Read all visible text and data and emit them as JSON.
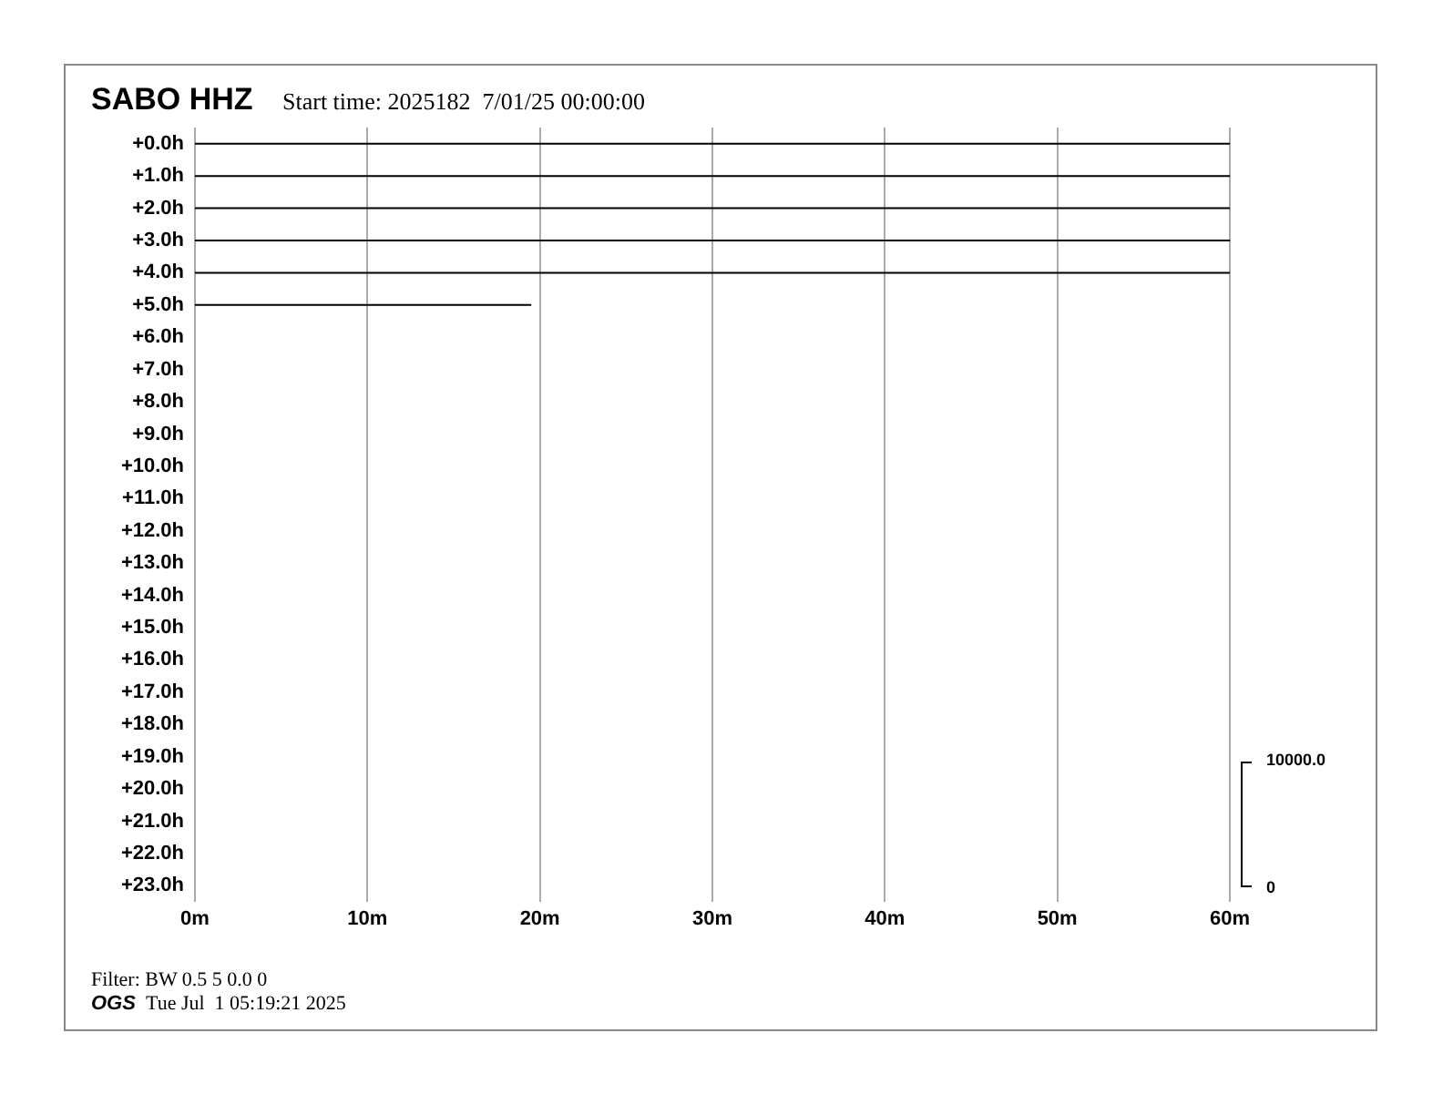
{
  "chart_data": {
    "type": "line",
    "title": "SABO HHZ",
    "subtitle": "Start time: 2025182  7/01/25 00:00:00",
    "xlim": [
      0,
      60
    ],
    "xticks": [
      {
        "value": 0,
        "label": "0m"
      },
      {
        "value": 10,
        "label": "10m"
      },
      {
        "value": 20,
        "label": "20m"
      },
      {
        "value": 30,
        "label": "30m"
      },
      {
        "value": 40,
        "label": "40m"
      },
      {
        "value": 50,
        "label": "50m"
      },
      {
        "value": 60,
        "label": "60m"
      }
    ],
    "ylim": [
      23.5,
      -0.5
    ],
    "yticks": [
      {
        "value": 0,
        "label": "+0.0h"
      },
      {
        "value": 1,
        "label": "+1.0h"
      },
      {
        "value": 2,
        "label": "+2.0h"
      },
      {
        "value": 3,
        "label": "+3.0h"
      },
      {
        "value": 4,
        "label": "+4.0h"
      },
      {
        "value": 5,
        "label": "+5.0h"
      },
      {
        "value": 6,
        "label": "+6.0h"
      },
      {
        "value": 7,
        "label": "+7.0h"
      },
      {
        "value": 8,
        "label": "+8.0h"
      },
      {
        "value": 9,
        "label": "+9.0h"
      },
      {
        "value": 10,
        "label": "+10.0h"
      },
      {
        "value": 11,
        "label": "+11.0h"
      },
      {
        "value": 12,
        "label": "+12.0h"
      },
      {
        "value": 13,
        "label": "+13.0h"
      },
      {
        "value": 14,
        "label": "+14.0h"
      },
      {
        "value": 15,
        "label": "+15.0h"
      },
      {
        "value": 16,
        "label": "+16.0h"
      },
      {
        "value": 17,
        "label": "+17.0h"
      },
      {
        "value": 18,
        "label": "+18.0h"
      },
      {
        "value": 19,
        "label": "+19.0h"
      },
      {
        "value": 20,
        "label": "+20.0h"
      },
      {
        "value": 21,
        "label": "+21.0h"
      },
      {
        "value": 22,
        "label": "+22.0h"
      },
      {
        "value": 23,
        "label": "+23.0h"
      }
    ],
    "grid": "x",
    "legend": false,
    "marker": "none",
    "line_style": "solid",
    "series": [
      {
        "color": "#000000",
        "x": [
          0,
          60
        ],
        "values": [
          0,
          0
        ]
      },
      {
        "color": "#000000",
        "x": [
          0,
          60
        ],
        "values": [
          1,
          1
        ]
      },
      {
        "color": "#000000",
        "x": [
          0,
          60
        ],
        "values": [
          2,
          2
        ]
      },
      {
        "color": "#000000",
        "x": [
          0,
          60
        ],
        "values": [
          3,
          3
        ]
      },
      {
        "color": "#000000",
        "x": [
          0,
          60
        ],
        "values": [
          4,
          4
        ]
      },
      {
        "color": "#000000",
        "x": [
          0,
          19.5
        ],
        "values": [
          5,
          5
        ]
      }
    ],
    "annotations": [
      "10000.0",
      "0",
      "Filter: BW 0.5 5 0.0 0",
      "OGS",
      "Tue Jul  1 05:19:21 2025"
    ]
  }
}
